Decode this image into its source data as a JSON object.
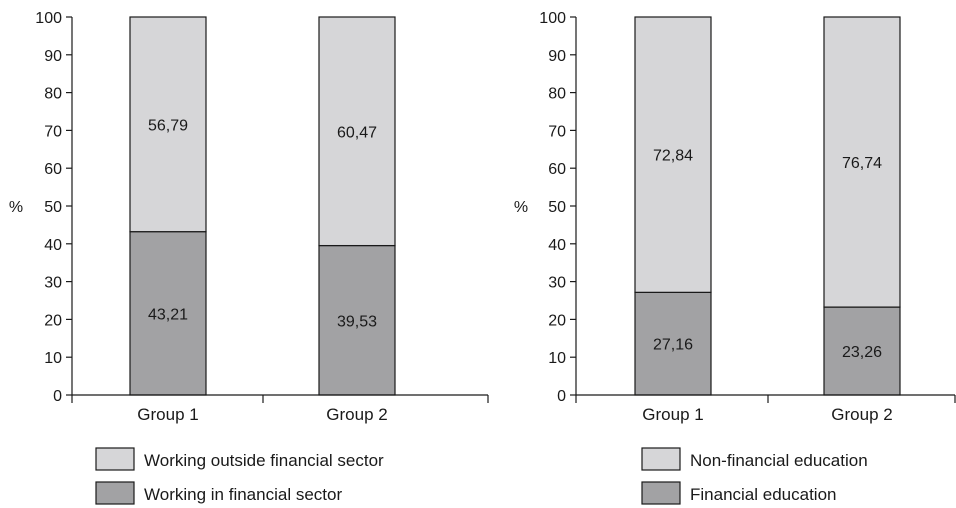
{
  "chart_data": [
    {
      "type": "bar",
      "stacked": true,
      "categories": [
        "Group 1",
        "Group 2"
      ],
      "ylabel": "%",
      "ylim": [
        0,
        100
      ],
      "yticks": [
        0,
        10,
        20,
        30,
        40,
        50,
        60,
        70,
        80,
        90,
        100
      ],
      "grid": false,
      "legend_position": "bottom",
      "series": [
        {
          "name": "Working in financial sector",
          "values": [
            43.21,
            39.53
          ],
          "labels": [
            "43,21",
            "39,53"
          ],
          "color": "#a2a2a4"
        },
        {
          "name": "Working outside financial sector",
          "values": [
            56.79,
            60.47
          ],
          "labels": [
            "56,79",
            "60,47"
          ],
          "color": "#d6d6d8"
        }
      ],
      "legend_order": [
        1,
        0
      ]
    },
    {
      "type": "bar",
      "stacked": true,
      "categories": [
        "Group 1",
        "Group 2"
      ],
      "ylabel": "%",
      "ylim": [
        0,
        100
      ],
      "yticks": [
        0,
        10,
        20,
        30,
        40,
        50,
        60,
        70,
        80,
        90,
        100
      ],
      "grid": false,
      "legend_position": "bottom",
      "series": [
        {
          "name": "Financial education",
          "values": [
            27.16,
            23.26
          ],
          "labels": [
            "27,16",
            "23,26"
          ],
          "color": "#a2a2a4"
        },
        {
          "name": "Non-financial education",
          "values": [
            72.84,
            76.74
          ],
          "labels": [
            "72,84",
            "76,74"
          ],
          "color": "#d6d6d8"
        }
      ],
      "legend_order": [
        1,
        0
      ]
    }
  ]
}
